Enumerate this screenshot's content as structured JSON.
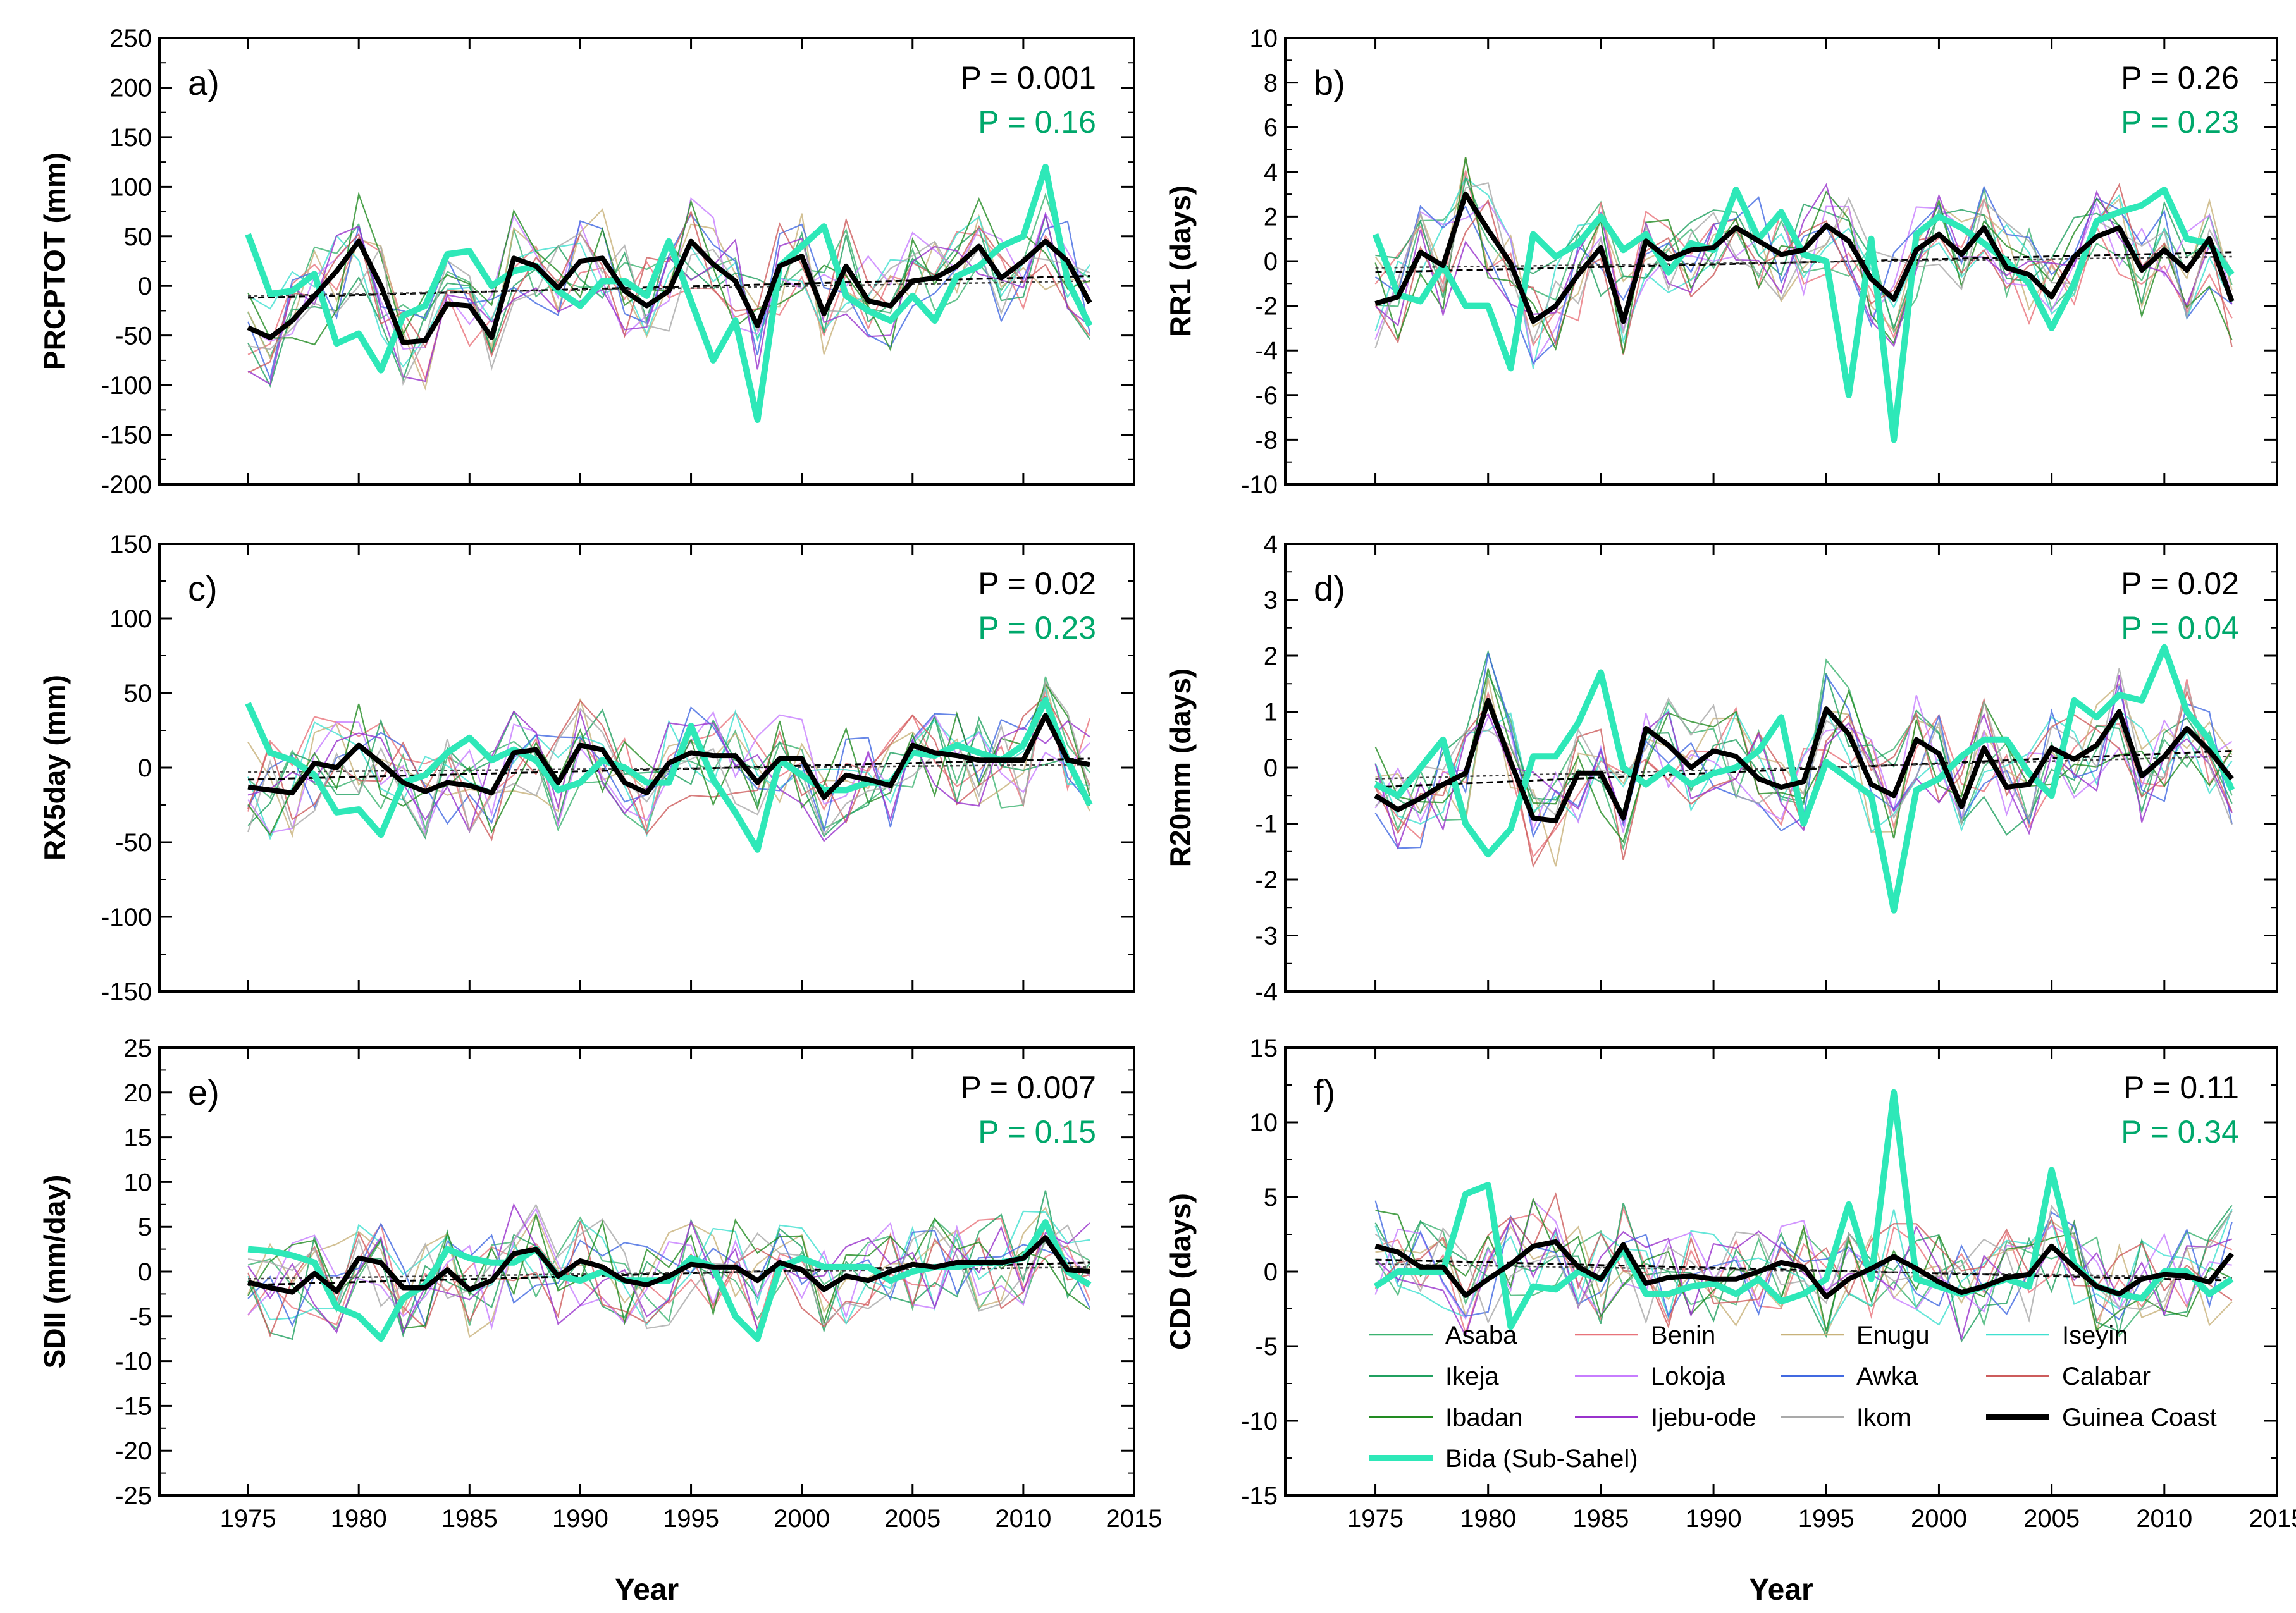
{
  "figure": {
    "xlabel": "Year",
    "colors": {
      "Asaba": "#3cb371",
      "Benin": "#e8737a",
      "Enugu": "#c8b27a",
      "Iseyin": "#40e0d0",
      "Ikeja": "#20a060",
      "Lokoja": "#c77dff",
      "Awka": "#4169e1",
      "Calabar": "#cd5c5c",
      "Ibadan": "#228b22",
      "Ijebu-ode": "#9932cc",
      "Ikom": "#a9a9a9",
      "Guinea Coast": "#000000",
      "Bida (Sub-Sahel)": "#2ee8b8",
      "p_black": "#000000",
      "p_green": "#00a86b"
    },
    "legend": {
      "entries": [
        "Asaba",
        "Benin",
        "Enugu",
        "Iseyin",
        "Ikeja",
        "Lokoja",
        "Awka",
        "Calabar",
        "Ibadan",
        "Ijebu-ode",
        "Ikom",
        "Guinea Coast",
        "Bida (Sub-Sahel)"
      ]
    }
  },
  "chart_data": [
    {
      "type": "line",
      "panel": "a)",
      "ylabel": "PRCPTOT (mm)",
      "ylim": [
        -200,
        250
      ],
      "yticks": [
        -200,
        -150,
        -100,
        -50,
        0,
        50,
        100,
        150,
        200,
        250
      ],
      "xlim": [
        1971,
        2015
      ],
      "xticks": [
        1975,
        1980,
        1985,
        1990,
        1995,
        2000,
        2005,
        2010,
        2015
      ],
      "p_guinea": "P = 0.001",
      "p_bida": "P = 0.16",
      "years_start": 1975,
      "series": [
        {
          "name": "Guinea Coast",
          "values": [
            -42,
            -52,
            -35,
            -10,
            15,
            45,
            0,
            -57,
            -55,
            -18,
            -20,
            -52,
            28,
            20,
            -2,
            25,
            28,
            -5,
            -20,
            -5,
            45,
            22,
            5,
            -40,
            20,
            30,
            -28,
            20,
            -15,
            -20,
            5,
            8,
            20,
            40,
            8,
            25,
            45,
            25,
            -17
          ]
        },
        {
          "name": "Bida (Sub-Sahel)",
          "values": [
            52,
            -8,
            -5,
            12,
            -58,
            -48,
            -85,
            -30,
            -20,
            32,
            35,
            0,
            15,
            20,
            -5,
            -20,
            5,
            5,
            -10,
            45,
            -15,
            -75,
            -35,
            -135,
            20,
            40,
            60,
            -10,
            -25,
            -35,
            -10,
            -35,
            10,
            20,
            40,
            50,
            120,
            5,
            -40
          ]
        }
      ],
      "trend_guinea": [
        -12,
        10
      ],
      "trend_bida": [
        -10,
        5
      ]
    },
    {
      "type": "line",
      "panel": "b)",
      "ylabel": "RR1 (days)",
      "ylim": [
        -10,
        10
      ],
      "yticks": [
        -10,
        -8,
        -6,
        -4,
        -2,
        0,
        2,
        4,
        6,
        8,
        10
      ],
      "xlim": [
        1971,
        2015
      ],
      "xticks": [
        1975,
        1980,
        1985,
        1990,
        1995,
        2000,
        2005,
        2010,
        2015
      ],
      "p_guinea": "P = 0.26",
      "p_bida": "P = 0.23",
      "years_start": 1975,
      "series": [
        {
          "name": "Guinea Coast",
          "values": [
            -1.9,
            -1.6,
            0.4,
            -0.2,
            3.0,
            1.4,
            -0.1,
            -2.7,
            -2.0,
            -0.6,
            0.6,
            -2.7,
            0.9,
            0.1,
            0.5,
            0.6,
            1.5,
            0.9,
            0.3,
            0.5,
            1.6,
            0.9,
            -0.8,
            -1.7,
            0.5,
            1.2,
            0.3,
            1.5,
            -0.3,
            -0.6,
            -1.6,
            0.2,
            1.1,
            1.5,
            -0.4,
            0.5,
            -0.4,
            1.0,
            -1.8
          ]
        },
        {
          "name": "Bida (Sub-Sahel)",
          "values": [
            1.2,
            -1.5,
            -1.8,
            -0.2,
            -2.0,
            -2.0,
            -4.8,
            1.2,
            0.2,
            0.8,
            2.0,
            0.5,
            1.2,
            -0.5,
            0.8,
            0.5,
            3.2,
            1.0,
            2.2,
            0.3,
            0.0,
            -6.0,
            1.0,
            -8.0,
            1.2,
            2.0,
            1.5,
            0.8,
            0.0,
            -1.0,
            -3.0,
            -1.0,
            1.8,
            2.2,
            2.5,
            3.2,
            1.0,
            0.8,
            -0.6
          ]
        }
      ],
      "trend_guinea": [
        -0.5,
        0.4
      ],
      "trend_bida": [
        -0.3,
        0.2
      ]
    },
    {
      "type": "line",
      "panel": "c)",
      "ylabel": "RX5day (mm)",
      "ylim": [
        -150,
        150
      ],
      "yticks": [
        -150,
        -100,
        -50,
        0,
        50,
        100,
        150
      ],
      "xlim": [
        1971,
        2015
      ],
      "xticks": [
        1975,
        1980,
        1985,
        1990,
        1995,
        2000,
        2005,
        2010,
        2015
      ],
      "p_guinea": "P = 0.02",
      "p_bida": "P = 0.23",
      "years_start": 1975,
      "series": [
        {
          "name": "Guinea Coast",
          "values": [
            -13,
            -15,
            -17,
            3,
            0,
            15,
            3,
            -10,
            -16,
            -10,
            -12,
            -17,
            10,
            12,
            -10,
            15,
            12,
            -10,
            -17,
            3,
            10,
            8,
            8,
            -10,
            6,
            6,
            -20,
            -5,
            -8,
            -12,
            15,
            10,
            8,
            5,
            5,
            5,
            35,
            5,
            2
          ]
        },
        {
          "name": "Bida (Sub-Sahel)",
          "values": [
            43,
            10,
            5,
            -5,
            -30,
            -28,
            -45,
            -10,
            -5,
            10,
            20,
            5,
            12,
            5,
            -15,
            -10,
            5,
            0,
            -10,
            -10,
            28,
            -8,
            -30,
            -55,
            5,
            -5,
            -15,
            -15,
            -10,
            -10,
            10,
            8,
            15,
            10,
            5,
            15,
            45,
            5,
            -25
          ]
        }
      ],
      "trend_guinea": [
        -8,
        6
      ],
      "trend_bida": [
        -3,
        2
      ]
    },
    {
      "type": "line",
      "panel": "d)",
      "ylabel": "R20mm (days)",
      "ylim": [
        -4,
        4
      ],
      "yticks": [
        -4,
        -3,
        -2,
        -1,
        0,
        1,
        2,
        3,
        4
      ],
      "xlim": [
        1971,
        2015
      ],
      "xticks": [
        1975,
        1980,
        1985,
        1990,
        1995,
        2000,
        2005,
        2010,
        2015
      ],
      "p_guinea": "P = 0.02",
      "p_bida": "P = 0.04",
      "years_start": 1975,
      "series": [
        {
          "name": "Guinea Coast",
          "values": [
            -0.5,
            -0.75,
            -0.55,
            -0.3,
            -0.1,
            1.2,
            0.1,
            -0.9,
            -0.95,
            -0.1,
            -0.1,
            -0.9,
            0.7,
            0.4,
            0.0,
            0.3,
            0.2,
            -0.2,
            -0.35,
            -0.25,
            1.05,
            0.6,
            -0.3,
            -0.5,
            0.5,
            0.25,
            -0.7,
            0.35,
            -0.35,
            -0.3,
            0.35,
            0.15,
            0.4,
            1.0,
            -0.15,
            0.2,
            0.7,
            0.3,
            -0.2
          ]
        },
        {
          "name": "Bida (Sub-Sahel)",
          "values": [
            -0.3,
            -0.5,
            0.0,
            0.5,
            -1.0,
            -1.55,
            -1.1,
            0.2,
            0.2,
            0.8,
            1.7,
            0.0,
            -0.3,
            0.0,
            -0.3,
            -0.1,
            0.0,
            0.3,
            0.9,
            -1.0,
            0.1,
            -0.2,
            -0.5,
            -2.55,
            -0.4,
            -0.2,
            0.2,
            0.5,
            0.5,
            -0.1,
            -0.5,
            1.2,
            0.9,
            1.3,
            1.2,
            2.15,
            1.0,
            0.5,
            -0.4
          ]
        }
      ],
      "trend_guinea": [
        -0.35,
        0.3
      ],
      "trend_bida": [
        -0.2,
        0.2
      ]
    },
    {
      "type": "line",
      "panel": "e)",
      "ylabel": "SDII (mm/day)",
      "ylim": [
        -25,
        25
      ],
      "yticks": [
        -25,
        -20,
        -15,
        -10,
        -5,
        0,
        5,
        10,
        15,
        20,
        25
      ],
      "xlim": [
        1971,
        2015
      ],
      "xticks": [
        1975,
        1980,
        1985,
        1990,
        1995,
        2000,
        2005,
        2010,
        2015
      ],
      "p_guinea": "P = 0.007",
      "p_bida": "P = 0.15",
      "years_start": 1975,
      "series": [
        {
          "name": "Guinea Coast",
          "values": [
            -1.2,
            -1.8,
            -2.3,
            -0.2,
            -2.2,
            1.5,
            1.0,
            -1.8,
            -1.8,
            0.2,
            -2.0,
            -1.0,
            2.0,
            2.5,
            -0.5,
            1.2,
            0.5,
            -1.0,
            -1.5,
            -0.5,
            0.8,
            0.5,
            0.5,
            -1.0,
            1.0,
            0.2,
            -2.0,
            -0.5,
            -1.0,
            0.0,
            0.8,
            0.5,
            1.0,
            1.0,
            1.0,
            1.5,
            3.8,
            0.2,
            0.0
          ]
        },
        {
          "name": "Bida (Sub-Sahel)",
          "values": [
            2.5,
            2.3,
            1.8,
            1.0,
            -4.0,
            -5.0,
            -7.5,
            -3.0,
            -1.5,
            2.5,
            1.5,
            1.0,
            1.0,
            2.5,
            -0.5,
            -1.0,
            0.0,
            -1.0,
            -1.0,
            -1.0,
            1.5,
            0.5,
            -5.0,
            -7.5,
            0.5,
            1.5,
            0.5,
            0.5,
            0.5,
            -1.0,
            0.0,
            0.5,
            0.5,
            1.0,
            1.0,
            1.5,
            5.5,
            0.0,
            -1.5
          ]
        }
      ],
      "trend_guinea": [
        -1.5,
        1.0
      ],
      "trend_bida": [
        -0.8,
        0.5
      ]
    },
    {
      "type": "line",
      "panel": "f)",
      "ylabel": "CDD (days)",
      "ylim": [
        -15,
        15
      ],
      "yticks": [
        -15,
        -10,
        -5,
        0,
        5,
        10,
        15
      ],
      "xlim": [
        1971,
        2015
      ],
      "xticks": [
        1975,
        1980,
        1985,
        1990,
        1995,
        2000,
        2005,
        2010,
        2015
      ],
      "p_guinea": "P = 0.11",
      "p_bida": "P = 0.34",
      "years_start": 1975,
      "series": [
        {
          "name": "Guinea Coast",
          "values": [
            1.7,
            1.3,
            0.3,
            0.3,
            -1.6,
            -0.5,
            0.5,
            1.7,
            2.0,
            0.3,
            -0.5,
            1.8,
            -0.8,
            -0.4,
            -0.3,
            -0.5,
            -0.5,
            0.0,
            0.6,
            0.3,
            -1.7,
            -0.5,
            0.2,
            1.0,
            0.2,
            -0.7,
            -1.4,
            -1.0,
            -0.4,
            -0.2,
            1.7,
            0.3,
            -1.0,
            -1.5,
            -0.5,
            -0.2,
            -0.3,
            -0.7,
            1.2
          ]
        },
        {
          "name": "Bida (Sub-Sahel)",
          "values": [
            -1.0,
            0.0,
            0.0,
            0.0,
            5.2,
            5.8,
            -3.7,
            -1.0,
            -1.2,
            0.0,
            -0.5,
            1.5,
            -1.5,
            -1.5,
            -1.0,
            -0.8,
            -1.5,
            -0.5,
            -2.0,
            -1.5,
            -0.5,
            4.5,
            -0.5,
            12.0,
            -0.5,
            -1.0,
            -1.5,
            -1.0,
            -0.5,
            -1.0,
            6.8,
            0.5,
            -1.0,
            -1.5,
            -1.8,
            0.0,
            0.0,
            -1.5,
            -0.5
          ]
        }
      ],
      "trend_guinea": [
        0.8,
        -0.6
      ],
      "trend_bida": [
        0.5,
        -0.4
      ]
    }
  ]
}
